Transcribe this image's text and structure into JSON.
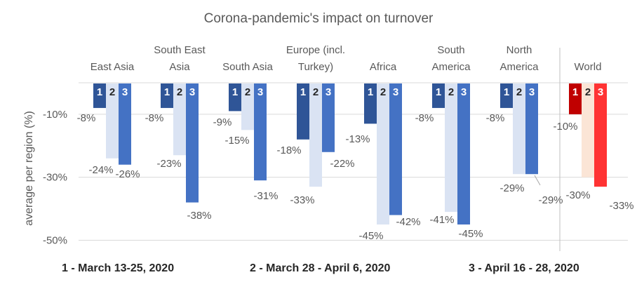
{
  "chart_data": {
    "type": "bar",
    "title": "Corona-pandemic's impact on turnover",
    "ylabel": "average per region (%)",
    "ylim": [
      -55,
      0
    ],
    "yticks": [
      -10,
      -30,
      -50
    ],
    "ytick_labels": [
      "-10%",
      "-30%",
      "-50%"
    ],
    "grid": true,
    "categories": [
      [
        "East Asia"
      ],
      [
        "South East",
        "Asia"
      ],
      [
        "South Asia"
      ],
      [
        "Europe (incl.",
        "Turkey)"
      ],
      [
        "Africa"
      ],
      [
        "South",
        "America"
      ],
      [
        "North",
        "America"
      ],
      [
        "World"
      ]
    ],
    "series": [
      {
        "name": "1 - March 13-25, 2020",
        "marker": "1",
        "values": [
          -8,
          -8,
          -9,
          -18,
          -13,
          -8,
          -8,
          -10
        ]
      },
      {
        "name": "2 - March 28 - April 6, 2020",
        "marker": "2",
        "values": [
          -24,
          -23,
          -15,
          -33,
          -45,
          -41,
          -29,
          -30
        ]
      },
      {
        "name": "3 - April 16 - 28, 2020",
        "marker": "3",
        "values": [
          -26,
          -38,
          -31,
          -22,
          -42,
          -45,
          -29,
          -33
        ]
      }
    ],
    "value_labels": [
      [
        "-8%",
        "-24%",
        "-26%"
      ],
      [
        "-8%",
        "-23%",
        "-38%"
      ],
      [
        "-9%",
        "-15%",
        "-31%"
      ],
      [
        "-18%",
        "-33%",
        "-22%"
      ],
      [
        "-13%",
        "-45%",
        "-42%"
      ],
      [
        "-8%",
        "-41%",
        "-45%"
      ],
      [
        "-8%",
        "-29%",
        "-29%"
      ],
      [
        "-10%",
        "-30%",
        "-33%"
      ]
    ],
    "colors": {
      "regions": [
        "#2f5597",
        "#dae3f3",
        "#4472c4"
      ],
      "world": [
        "#c00000",
        "#fbe5d6",
        "#ff3333"
      ],
      "grid": "#d9d9d9",
      "separator": "#bfbfbf"
    }
  }
}
